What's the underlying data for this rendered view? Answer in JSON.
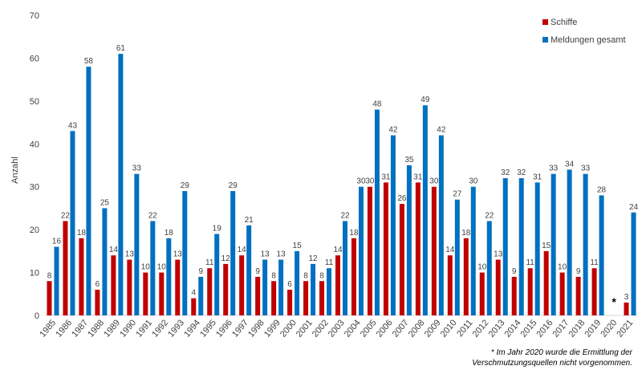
{
  "chart_data": {
    "type": "bar",
    "ylabel": "Anzahl",
    "ylim": [
      0,
      70
    ],
    "yticks": [
      0,
      10,
      20,
      30,
      40,
      50,
      60,
      70
    ],
    "grid": false,
    "legend_position": "top-right",
    "categories": [
      "1985",
      "1986",
      "1987",
      "1988",
      "1989",
      "1990",
      "1991",
      "1992",
      "1993",
      "1994",
      "1995",
      "1996",
      "1997",
      "1998",
      "1999",
      "2000",
      "2001",
      "2002",
      "2003",
      "2004",
      "2005",
      "2006",
      "2007",
      "2008",
      "2009",
      "2010",
      "2011",
      "2012",
      "2013",
      "2014",
      "2015",
      "2016",
      "2017",
      "2018",
      "2019",
      "2020",
      "2021"
    ],
    "series": [
      {
        "name": "Schiffe",
        "color": "#c00000",
        "values": [
          8,
          22,
          18,
          6,
          14,
          13,
          10,
          10,
          13,
          4,
          11,
          12,
          14,
          9,
          8,
          6,
          8,
          8,
          14,
          18,
          30,
          31,
          26,
          31,
          30,
          14,
          18,
          10,
          13,
          9,
          11,
          15,
          10,
          9,
          11,
          null,
          3
        ]
      },
      {
        "name": "Meldungen gesamt",
        "color": "#0070c0",
        "values": [
          16,
          43,
          58,
          25,
          61,
          33,
          22,
          18,
          29,
          9,
          19,
          29,
          21,
          13,
          13,
          15,
          12,
          11,
          22,
          30,
          48,
          42,
          35,
          49,
          42,
          27,
          30,
          22,
          32,
          32,
          31,
          33,
          34,
          33,
          28,
          null,
          24
        ]
      }
    ],
    "annotations": [
      {
        "category": "2020",
        "text": "*"
      }
    ]
  },
  "footnote": {
    "line1": "* Im Jahr 2020 wurde die Ermittlung der",
    "line2": "Verschmutzungsquellen nicht vorgenommen."
  }
}
